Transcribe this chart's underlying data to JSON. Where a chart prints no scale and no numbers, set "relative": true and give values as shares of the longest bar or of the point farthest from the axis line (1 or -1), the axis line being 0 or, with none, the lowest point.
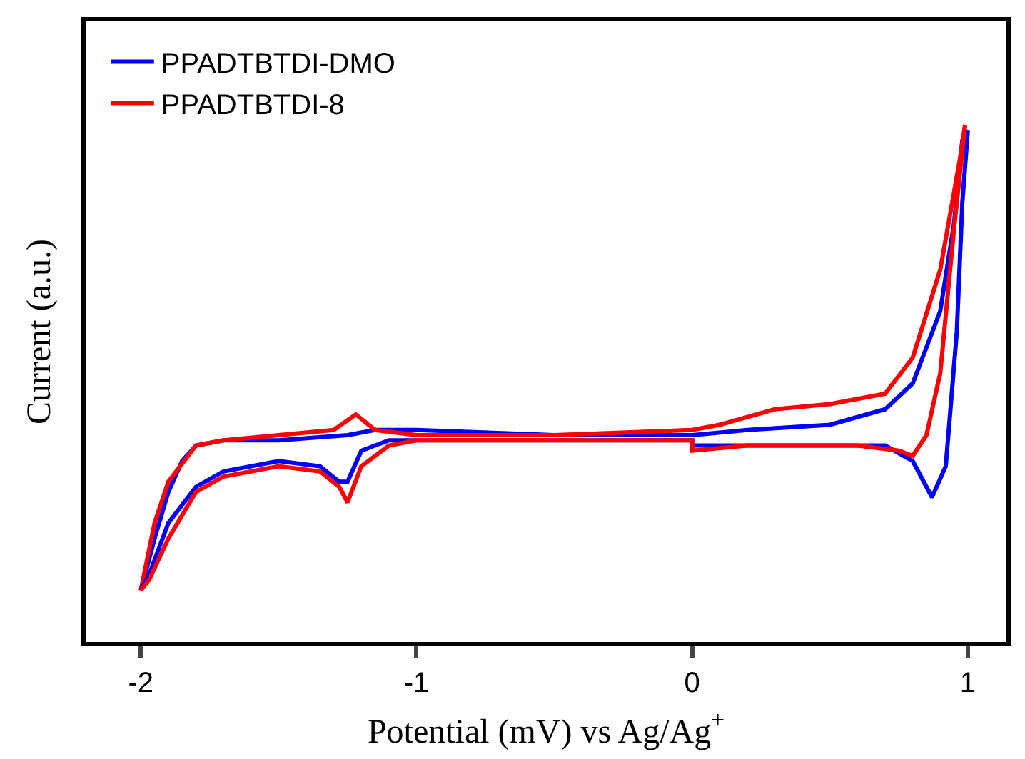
{
  "chart_data": {
    "type": "line",
    "relative": true,
    "xlabel": "Potential (mV) vs Ag/Ag$^{+}$",
    "ylabel": "Current (a.u.)",
    "xlim": [
      -2.2,
      1.14
    ],
    "xticks": [
      -2,
      -1,
      0,
      1
    ],
    "grid": false,
    "legend": "top left",
    "marker": "none",
    "line_style": "solid",
    "series": [
      {
        "name": "PPADTBTDI-DMO",
        "color": "#0000ff",
        "x": [
          -2,
          -1.95,
          -1.9,
          -1.85,
          -1.8,
          -1.7,
          -1.5,
          -1.25,
          -1.15,
          -1,
          -0.5,
          0,
          0.2,
          0.5,
          0.7,
          0.8,
          0.9,
          0.95,
          0.98,
          1.0
        ],
        "values": [
          0.1,
          0.2,
          0.29,
          0.35,
          0.38,
          0.39,
          0.39,
          0.4,
          0.41,
          0.41,
          0.4,
          0.4,
          0.41,
          0.42,
          0.45,
          0.5,
          0.64,
          0.81,
          0.97,
          0.99
        ]
      },
      {
        "name": "PPADTBTDI-8",
        "color": "#ff0000",
        "x": [
          -2,
          -1.95,
          -1.9,
          -1.8,
          -1.7,
          -1.5,
          -1.3,
          -1.22,
          -1.15,
          -1,
          -0.5,
          0,
          0.1,
          0.3,
          0.5,
          0.7,
          0.8,
          0.9,
          0.97,
          0.99
        ],
        "values": [
          0.1,
          0.23,
          0.31,
          0.38,
          0.39,
          0.4,
          0.41,
          0.44,
          0.41,
          0.4,
          0.4,
          0.41,
          0.42,
          0.45,
          0.46,
          0.48,
          0.55,
          0.72,
          0.93,
          1.0
        ]
      },
      {
        "color": "#0000ff",
        "x": [
          -2,
          -1.97,
          -1.9,
          -1.8,
          -1.7,
          -1.5,
          -1.35,
          -1.28,
          -1.25,
          -1.2,
          -1.1,
          -1,
          -0.5,
          0,
          0,
          0.5,
          0.7,
          0.8,
          0.87,
          0.92,
          0.96,
          0.98,
          1.0
        ],
        "values": [
          0.1,
          0.13,
          0.23,
          0.3,
          0.33,
          0.35,
          0.34,
          0.31,
          0.31,
          0.37,
          0.39,
          0.39,
          0.39,
          0.39,
          0.38,
          0.38,
          0.38,
          0.35,
          0.28,
          0.34,
          0.6,
          0.85,
          0.99
        ]
      },
      {
        "color": "#ff0000",
        "x": [
          -2,
          -1.97,
          -1.9,
          -1.8,
          -1.7,
          -1.5,
          -1.35,
          -1.28,
          -1.25,
          -1.2,
          -1.1,
          -1,
          -0.5,
          0,
          0,
          0.2,
          0.6,
          0.75,
          0.8,
          0.85,
          0.9,
          0.95,
          0.97,
          0.99
        ],
        "values": [
          0.1,
          0.12,
          0.2,
          0.29,
          0.32,
          0.34,
          0.33,
          0.3,
          0.27,
          0.34,
          0.38,
          0.39,
          0.39,
          0.39,
          0.37,
          0.38,
          0.38,
          0.37,
          0.36,
          0.4,
          0.52,
          0.8,
          0.9,
          1.0
        ]
      }
    ]
  }
}
